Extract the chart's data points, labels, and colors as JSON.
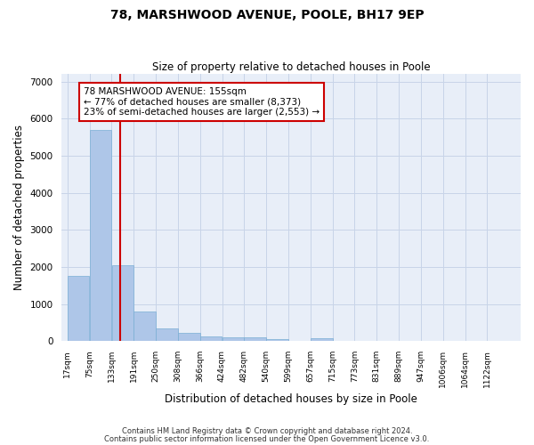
{
  "title1": "78, MARSHWOOD AVENUE, POOLE, BH17 9EP",
  "title2": "Size of property relative to detached houses in Poole",
  "xlabel": "Distribution of detached houses by size in Poole",
  "ylabel": "Number of detached properties",
  "property_size": 155,
  "property_label": "78 MARSHWOOD AVENUE: 155sqm",
  "annotation_line1": "← 77% of detached houses are smaller (8,373)",
  "annotation_line2": "23% of semi-detached houses are larger (2,553) →",
  "bar_edges": [
    17,
    75,
    133,
    191,
    250,
    308,
    366,
    424,
    482,
    540,
    599,
    657,
    715,
    773,
    831,
    889,
    947,
    1006,
    1064,
    1122,
    1180
  ],
  "bar_heights": [
    1750,
    5700,
    2050,
    800,
    350,
    210,
    130,
    110,
    110,
    50,
    0,
    80,
    0,
    0,
    0,
    0,
    0,
    0,
    0,
    0
  ],
  "bar_color": "#aec6e8",
  "bar_edgecolor": "#7aafd4",
  "grid_color": "#c8d4e8",
  "background_color": "#e8eef8",
  "annotation_box_color": "#cc0000",
  "vline_color": "#cc0000",
  "ylim": [
    0,
    7200
  ],
  "yticks": [
    0,
    1000,
    2000,
    3000,
    4000,
    5000,
    6000,
    7000
  ],
  "footnote1": "Contains HM Land Registry data © Crown copyright and database right 2024.",
  "footnote2": "Contains public sector information licensed under the Open Government Licence v3.0."
}
